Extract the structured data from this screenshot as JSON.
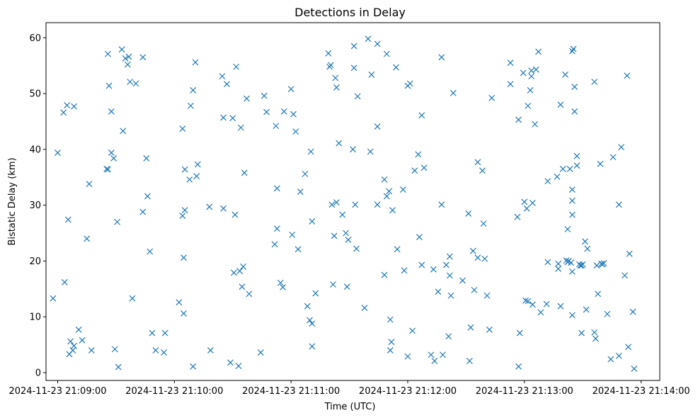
{
  "chart_data": {
    "type": "scatter",
    "title": "Detections in Delay",
    "xlabel": "Time (UTC)",
    "ylabel": "Bistatic Delay (km)",
    "marker": "x",
    "color": "#1f77b4",
    "x_unit": "minutes after 2024-11-23 21:09:00",
    "xlim": [
      -0.1,
      5.16
    ],
    "ylim": [
      -1.4,
      62.7
    ],
    "x_ticks": [
      {
        "value": 0,
        "label": "2024-11-23 21:09:00"
      },
      {
        "value": 1,
        "label": "2024-11-23 21:10:00"
      },
      {
        "value": 2,
        "label": "2024-11-23 21:11:00"
      },
      {
        "value": 3,
        "label": "2024-11-23 21:12:00"
      },
      {
        "value": 4,
        "label": "2024-11-23 21:13:00"
      },
      {
        "value": 5,
        "label": "2024-11-23 21:14:00"
      }
    ],
    "y_ticks": [
      {
        "value": 0,
        "label": "0"
      },
      {
        "value": 10,
        "label": "10"
      },
      {
        "value": 20,
        "label": "20"
      },
      {
        "value": 30,
        "label": "30"
      },
      {
        "value": 40,
        "label": "40"
      },
      {
        "value": 50,
        "label": "50"
      },
      {
        "value": 60,
        "label": "60"
      }
    ],
    "points": [
      [
        -0.04,
        13.3
      ],
      [
        0.0,
        39.4
      ],
      [
        0.05,
        46.6
      ],
      [
        0.06,
        16.2
      ],
      [
        0.08,
        47.9
      ],
      [
        0.09,
        27.4
      ],
      [
        0.1,
        3.3
      ],
      [
        0.11,
        5.6
      ],
      [
        0.13,
        4.0
      ],
      [
        0.14,
        47.7
      ],
      [
        0.14,
        4.8
      ],
      [
        0.18,
        7.7
      ],
      [
        0.21,
        5.8
      ],
      [
        0.25,
        24.0
      ],
      [
        0.27,
        33.8
      ],
      [
        0.29,
        4.0
      ],
      [
        0.42,
        36.5
      ],
      [
        0.43,
        36.4
      ],
      [
        0.43,
        57.1
      ],
      [
        0.44,
        51.4
      ],
      [
        0.46,
        39.4
      ],
      [
        0.46,
        46.8
      ],
      [
        0.48,
        38.4
      ],
      [
        0.49,
        4.2
      ],
      [
        0.51,
        27.0
      ],
      [
        0.52,
        1.0
      ],
      [
        0.55,
        57.9
      ],
      [
        0.56,
        43.3
      ],
      [
        0.58,
        56.3
      ],
      [
        0.6,
        55.2
      ],
      [
        0.61,
        56.6
      ],
      [
        0.62,
        52.1
      ],
      [
        0.64,
        13.3
      ],
      [
        0.67,
        51.8
      ],
      [
        0.73,
        56.5
      ],
      [
        0.73,
        28.8
      ],
      [
        0.76,
        38.4
      ],
      [
        0.77,
        31.6
      ],
      [
        0.79,
        21.7
      ],
      [
        0.81,
        7.1
      ],
      [
        0.84,
        4.0
      ],
      [
        0.91,
        3.6
      ],
      [
        0.92,
        7.1
      ],
      [
        1.04,
        12.6
      ],
      [
        1.07,
        43.7
      ],
      [
        1.07,
        28.1
      ],
      [
        1.08,
        20.6
      ],
      [
        1.08,
        10.6
      ],
      [
        1.09,
        36.4
      ],
      [
        1.09,
        29.1
      ],
      [
        1.13,
        34.6
      ],
      [
        1.14,
        47.8
      ],
      [
        1.16,
        1.1
      ],
      [
        1.16,
        50.6
      ],
      [
        1.18,
        55.6
      ],
      [
        1.19,
        35.2
      ],
      [
        1.2,
        37.3
      ],
      [
        1.3,
        29.7
      ],
      [
        1.31,
        4.0
      ],
      [
        1.41,
        53.1
      ],
      [
        1.42,
        45.7
      ],
      [
        1.42,
        29.4
      ],
      [
        1.45,
        51.7
      ],
      [
        1.48,
        1.8
      ],
      [
        1.5,
        45.6
      ],
      [
        1.51,
        17.9
      ],
      [
        1.52,
        28.3
      ],
      [
        1.53,
        54.8
      ],
      [
        1.55,
        1.2
      ],
      [
        1.56,
        18.2
      ],
      [
        1.57,
        43.9
      ],
      [
        1.58,
        15.4
      ],
      [
        1.59,
        19.0
      ],
      [
        1.6,
        35.8
      ],
      [
        1.62,
        49.1
      ],
      [
        1.64,
        14.1
      ],
      [
        1.74,
        3.6
      ],
      [
        1.77,
        49.6
      ],
      [
        1.79,
        46.7
      ],
      [
        1.86,
        23.0
      ],
      [
        1.87,
        44.2
      ],
      [
        1.88,
        33.0
      ],
      [
        1.88,
        25.8
      ],
      [
        1.91,
        16.1
      ],
      [
        1.93,
        15.3
      ],
      [
        1.94,
        46.8
      ],
      [
        2.0,
        50.8
      ],
      [
        2.01,
        24.7
      ],
      [
        2.02,
        46.3
      ],
      [
        2.04,
        43.2
      ],
      [
        2.06,
        22.1
      ],
      [
        2.08,
        32.4
      ],
      [
        2.12,
        35.6
      ],
      [
        2.14,
        11.9
      ],
      [
        2.16,
        9.4
      ],
      [
        2.17,
        39.6
      ],
      [
        2.18,
        27.1
      ],
      [
        2.18,
        8.8
      ],
      [
        2.18,
        4.7
      ],
      [
        2.21,
        14.2
      ],
      [
        2.32,
        57.2
      ],
      [
        2.33,
        54.8
      ],
      [
        2.34,
        55.1
      ],
      [
        2.35,
        30.1
      ],
      [
        2.36,
        15.8
      ],
      [
        2.37,
        24.5
      ],
      [
        2.38,
        52.8
      ],
      [
        2.39,
        30.5
      ],
      [
        2.39,
        51.1
      ],
      [
        2.41,
        41.1
      ],
      [
        2.44,
        28.3
      ],
      [
        2.47,
        25.0
      ],
      [
        2.48,
        15.4
      ],
      [
        2.49,
        23.8
      ],
      [
        2.53,
        40.0
      ],
      [
        2.54,
        58.5
      ],
      [
        2.54,
        54.6
      ],
      [
        2.55,
        30.1
      ],
      [
        2.56,
        22.2
      ],
      [
        2.57,
        49.5
      ],
      [
        2.63,
        11.6
      ],
      [
        2.66,
        59.8
      ],
      [
        2.68,
        39.6
      ],
      [
        2.69,
        53.4
      ],
      [
        2.74,
        58.9
      ],
      [
        2.74,
        44.1
      ],
      [
        2.74,
        30.1
      ],
      [
        2.8,
        17.5
      ],
      [
        2.8,
        34.6
      ],
      [
        2.82,
        57.1
      ],
      [
        2.82,
        31.6
      ],
      [
        2.84,
        32.5
      ],
      [
        2.85,
        9.5
      ],
      [
        2.85,
        4.0
      ],
      [
        2.86,
        5.5
      ],
      [
        2.87,
        29.1
      ],
      [
        2.9,
        54.7
      ],
      [
        2.91,
        22.1
      ],
      [
        2.96,
        32.8
      ],
      [
        2.97,
        18.3
      ],
      [
        3.0,
        51.4
      ],
      [
        3.0,
        2.9
      ],
      [
        3.02,
        51.8
      ],
      [
        3.04,
        7.5
      ],
      [
        3.06,
        36.2
      ],
      [
        3.09,
        39.1
      ],
      [
        3.1,
        24.3
      ],
      [
        3.12,
        46.1
      ],
      [
        3.12,
        19.3
      ],
      [
        3.14,
        36.7
      ],
      [
        3.2,
        3.2
      ],
      [
        3.22,
        18.5
      ],
      [
        3.23,
        2.1
      ],
      [
        3.26,
        14.5
      ],
      [
        3.29,
        56.5
      ],
      [
        3.29,
        30.1
      ],
      [
        3.3,
        3.2
      ],
      [
        3.33,
        19.3
      ],
      [
        3.35,
        6.5
      ],
      [
        3.36,
        20.8
      ],
      [
        3.36,
        17.4
      ],
      [
        3.37,
        13.8
      ],
      [
        3.39,
        50.1
      ],
      [
        3.47,
        16.5
      ],
      [
        3.52,
        28.5
      ],
      [
        3.53,
        2.1
      ],
      [
        3.54,
        8.1
      ],
      [
        3.56,
        21.8
      ],
      [
        3.57,
        14.8
      ],
      [
        3.6,
        37.7
      ],
      [
        3.6,
        20.6
      ],
      [
        3.64,
        36.2
      ],
      [
        3.65,
        26.7
      ],
      [
        3.66,
        20.4
      ],
      [
        3.68,
        13.8
      ],
      [
        3.7,
        7.7
      ],
      [
        3.72,
        49.2
      ],
      [
        3.88,
        55.5
      ],
      [
        3.88,
        51.7
      ],
      [
        3.94,
        27.9
      ],
      [
        3.95,
        45.3
      ],
      [
        3.95,
        1.1
      ],
      [
        3.96,
        7.1
      ],
      [
        3.99,
        53.7
      ],
      [
        4.0,
        30.6
      ],
      [
        4.01,
        12.9
      ],
      [
        4.02,
        29.4
      ],
      [
        4.03,
        47.8
      ],
      [
        4.03,
        12.8
      ],
      [
        4.05,
        50.6
      ],
      [
        4.06,
        53.1
      ],
      [
        4.06,
        54.1
      ],
      [
        4.07,
        30.4
      ],
      [
        4.07,
        12.2
      ],
      [
        4.09,
        44.5
      ],
      [
        4.1,
        54.3
      ],
      [
        4.12,
        57.5
      ],
      [
        4.14,
        10.8
      ],
      [
        4.19,
        12.3
      ],
      [
        4.2,
        34.3
      ],
      [
        4.2,
        19.8
      ],
      [
        4.28,
        35.1
      ],
      [
        4.29,
        19.5
      ],
      [
        4.29,
        18.6
      ],
      [
        4.31,
        48.0
      ],
      [
        4.31,
        11.9
      ],
      [
        4.33,
        36.5
      ],
      [
        4.35,
        53.4
      ],
      [
        4.36,
        20.1
      ],
      [
        4.37,
        25.7
      ],
      [
        4.37,
        19.8
      ],
      [
        4.38,
        20.0
      ],
      [
        4.39,
        36.5
      ],
      [
        4.4,
        19.7
      ],
      [
        4.41,
        32.8
      ],
      [
        4.41,
        30.8
      ],
      [
        4.41,
        28.3
      ],
      [
        4.41,
        18.1
      ],
      [
        4.41,
        10.3
      ],
      [
        4.41,
        57.6
      ],
      [
        4.42,
        58.0
      ],
      [
        4.43,
        46.8
      ],
      [
        4.43,
        51.2
      ],
      [
        4.45,
        38.8
      ],
      [
        4.45,
        37.1
      ],
      [
        4.47,
        19.4
      ],
      [
        4.48,
        19.2
      ],
      [
        4.49,
        7.1
      ],
      [
        4.49,
        19.2
      ],
      [
        4.5,
        19.4
      ],
      [
        4.52,
        23.5
      ],
      [
        4.53,
        11.3
      ],
      [
        4.54,
        22.2
      ],
      [
        4.6,
        52.1
      ],
      [
        4.6,
        7.2
      ],
      [
        4.61,
        6.1
      ],
      [
        4.62,
        19.2
      ],
      [
        4.63,
        14.1
      ],
      [
        4.65,
        37.4
      ],
      [
        4.66,
        19.5
      ],
      [
        4.67,
        19.4
      ],
      [
        4.68,
        19.6
      ],
      [
        4.71,
        10.5
      ],
      [
        4.74,
        2.4
      ],
      [
        4.76,
        38.6
      ],
      [
        4.81,
        3.0
      ],
      [
        4.81,
        30.1
      ],
      [
        4.83,
        40.4
      ],
      [
        4.86,
        17.4
      ],
      [
        4.88,
        53.2
      ],
      [
        4.89,
        4.6
      ],
      [
        4.9,
        21.3
      ],
      [
        4.93,
        10.9
      ],
      [
        4.94,
        0.7
      ]
    ]
  }
}
